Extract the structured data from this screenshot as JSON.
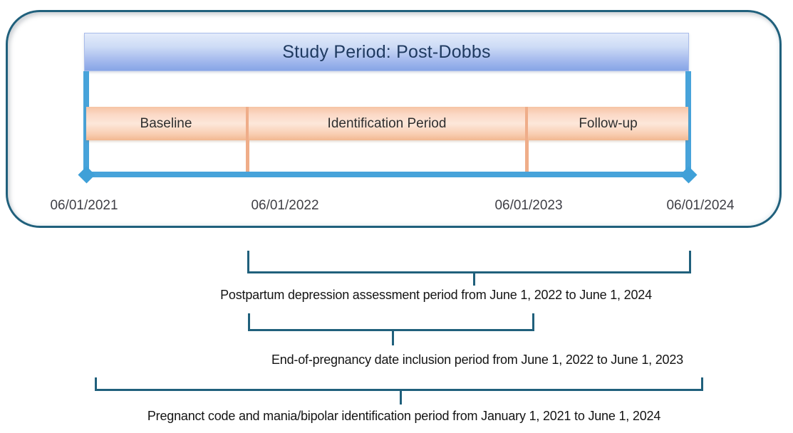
{
  "study_box": {
    "title": "Study Period: Post-Dobbs",
    "sections": [
      {
        "label": "Baseline"
      },
      {
        "label": "Identification Period"
      },
      {
        "label": "Follow-up"
      }
    ],
    "dates": [
      "06/01/2021",
      "06/01/2022",
      "06/01/2023",
      "06/01/2024"
    ]
  },
  "annotations": [
    {
      "label": "Postpartum depression assessment period from June 1, 2022 to June 1, 2024"
    },
    {
      "label": "End-of-pregnancy date inclusion period from June 1, 2022 to June 1, 2023"
    },
    {
      "label": "Pregnanct code and mania/bipolar identification period from January 1, 2021 to June 1, 2024"
    }
  ],
  "colors": {
    "outline_teal": "#20607C",
    "timeline_blue": "#47A3DA",
    "header_gradient_top": "#E3EBFA",
    "header_gradient_bottom": "#87A5E6",
    "band_gradient_top": "#F6C4A5",
    "band_gradient_mid": "#FDE7DA",
    "band_gradient_bottom": "#F2B891",
    "divider_orange": "#EFAD89",
    "title_text": "#1F3A60",
    "section_text": "#2E2E2E",
    "date_text": "#3F3F46",
    "annotation_text": "#141414"
  }
}
